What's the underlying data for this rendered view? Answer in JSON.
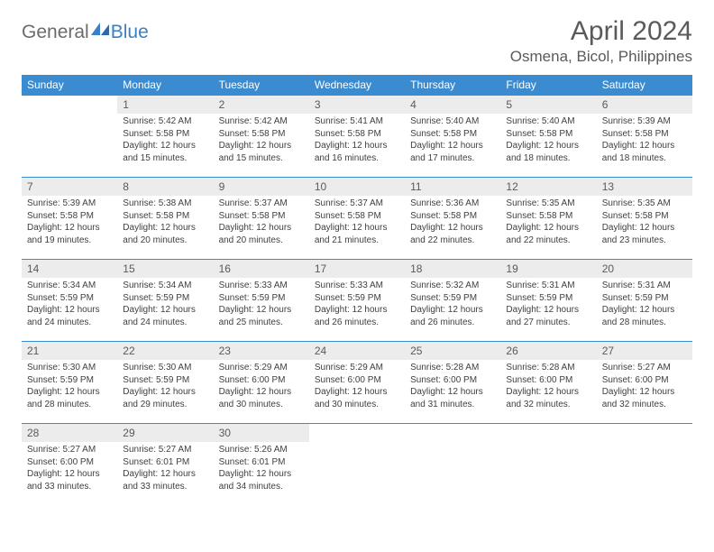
{
  "brand": {
    "part1": "General",
    "part2": "Blue"
  },
  "title": "April 2024",
  "location": "Osmena, Bicol, Philippines",
  "colors": {
    "header_bg": "#3b8bd0",
    "header_text": "#ffffff",
    "daynum_bg": "#ececec",
    "text": "#404040",
    "border": "#3b8bd0",
    "brand_grey": "#6b6b6b",
    "brand_blue": "#3b7fc4"
  },
  "day_headers": [
    "Sunday",
    "Monday",
    "Tuesday",
    "Wednesday",
    "Thursday",
    "Friday",
    "Saturday"
  ],
  "first_weekday_index": 1,
  "days": [
    {
      "n": 1,
      "sunrise": "5:42 AM",
      "sunset": "5:58 PM",
      "daylight": "12 hours and 15 minutes."
    },
    {
      "n": 2,
      "sunrise": "5:42 AM",
      "sunset": "5:58 PM",
      "daylight": "12 hours and 15 minutes."
    },
    {
      "n": 3,
      "sunrise": "5:41 AM",
      "sunset": "5:58 PM",
      "daylight": "12 hours and 16 minutes."
    },
    {
      "n": 4,
      "sunrise": "5:40 AM",
      "sunset": "5:58 PM",
      "daylight": "12 hours and 17 minutes."
    },
    {
      "n": 5,
      "sunrise": "5:40 AM",
      "sunset": "5:58 PM",
      "daylight": "12 hours and 18 minutes."
    },
    {
      "n": 6,
      "sunrise": "5:39 AM",
      "sunset": "5:58 PM",
      "daylight": "12 hours and 18 minutes."
    },
    {
      "n": 7,
      "sunrise": "5:39 AM",
      "sunset": "5:58 PM",
      "daylight": "12 hours and 19 minutes."
    },
    {
      "n": 8,
      "sunrise": "5:38 AM",
      "sunset": "5:58 PM",
      "daylight": "12 hours and 20 minutes."
    },
    {
      "n": 9,
      "sunrise": "5:37 AM",
      "sunset": "5:58 PM",
      "daylight": "12 hours and 20 minutes."
    },
    {
      "n": 10,
      "sunrise": "5:37 AM",
      "sunset": "5:58 PM",
      "daylight": "12 hours and 21 minutes."
    },
    {
      "n": 11,
      "sunrise": "5:36 AM",
      "sunset": "5:58 PM",
      "daylight": "12 hours and 22 minutes."
    },
    {
      "n": 12,
      "sunrise": "5:35 AM",
      "sunset": "5:58 PM",
      "daylight": "12 hours and 22 minutes."
    },
    {
      "n": 13,
      "sunrise": "5:35 AM",
      "sunset": "5:58 PM",
      "daylight": "12 hours and 23 minutes."
    },
    {
      "n": 14,
      "sunrise": "5:34 AM",
      "sunset": "5:59 PM",
      "daylight": "12 hours and 24 minutes."
    },
    {
      "n": 15,
      "sunrise": "5:34 AM",
      "sunset": "5:59 PM",
      "daylight": "12 hours and 24 minutes."
    },
    {
      "n": 16,
      "sunrise": "5:33 AM",
      "sunset": "5:59 PM",
      "daylight": "12 hours and 25 minutes."
    },
    {
      "n": 17,
      "sunrise": "5:33 AM",
      "sunset": "5:59 PM",
      "daylight": "12 hours and 26 minutes."
    },
    {
      "n": 18,
      "sunrise": "5:32 AM",
      "sunset": "5:59 PM",
      "daylight": "12 hours and 26 minutes."
    },
    {
      "n": 19,
      "sunrise": "5:31 AM",
      "sunset": "5:59 PM",
      "daylight": "12 hours and 27 minutes."
    },
    {
      "n": 20,
      "sunrise": "5:31 AM",
      "sunset": "5:59 PM",
      "daylight": "12 hours and 28 minutes."
    },
    {
      "n": 21,
      "sunrise": "5:30 AM",
      "sunset": "5:59 PM",
      "daylight": "12 hours and 28 minutes."
    },
    {
      "n": 22,
      "sunrise": "5:30 AM",
      "sunset": "5:59 PM",
      "daylight": "12 hours and 29 minutes."
    },
    {
      "n": 23,
      "sunrise": "5:29 AM",
      "sunset": "6:00 PM",
      "daylight": "12 hours and 30 minutes."
    },
    {
      "n": 24,
      "sunrise": "5:29 AM",
      "sunset": "6:00 PM",
      "daylight": "12 hours and 30 minutes."
    },
    {
      "n": 25,
      "sunrise": "5:28 AM",
      "sunset": "6:00 PM",
      "daylight": "12 hours and 31 minutes."
    },
    {
      "n": 26,
      "sunrise": "5:28 AM",
      "sunset": "6:00 PM",
      "daylight": "12 hours and 32 minutes."
    },
    {
      "n": 27,
      "sunrise": "5:27 AM",
      "sunset": "6:00 PM",
      "daylight": "12 hours and 32 minutes."
    },
    {
      "n": 28,
      "sunrise": "5:27 AM",
      "sunset": "6:00 PM",
      "daylight": "12 hours and 33 minutes."
    },
    {
      "n": 29,
      "sunrise": "5:27 AM",
      "sunset": "6:01 PM",
      "daylight": "12 hours and 33 minutes."
    },
    {
      "n": 30,
      "sunrise": "5:26 AM",
      "sunset": "6:01 PM",
      "daylight": "12 hours and 34 minutes."
    }
  ],
  "labels": {
    "sunrise": "Sunrise: ",
    "sunset": "Sunset: ",
    "daylight": "Daylight: "
  }
}
